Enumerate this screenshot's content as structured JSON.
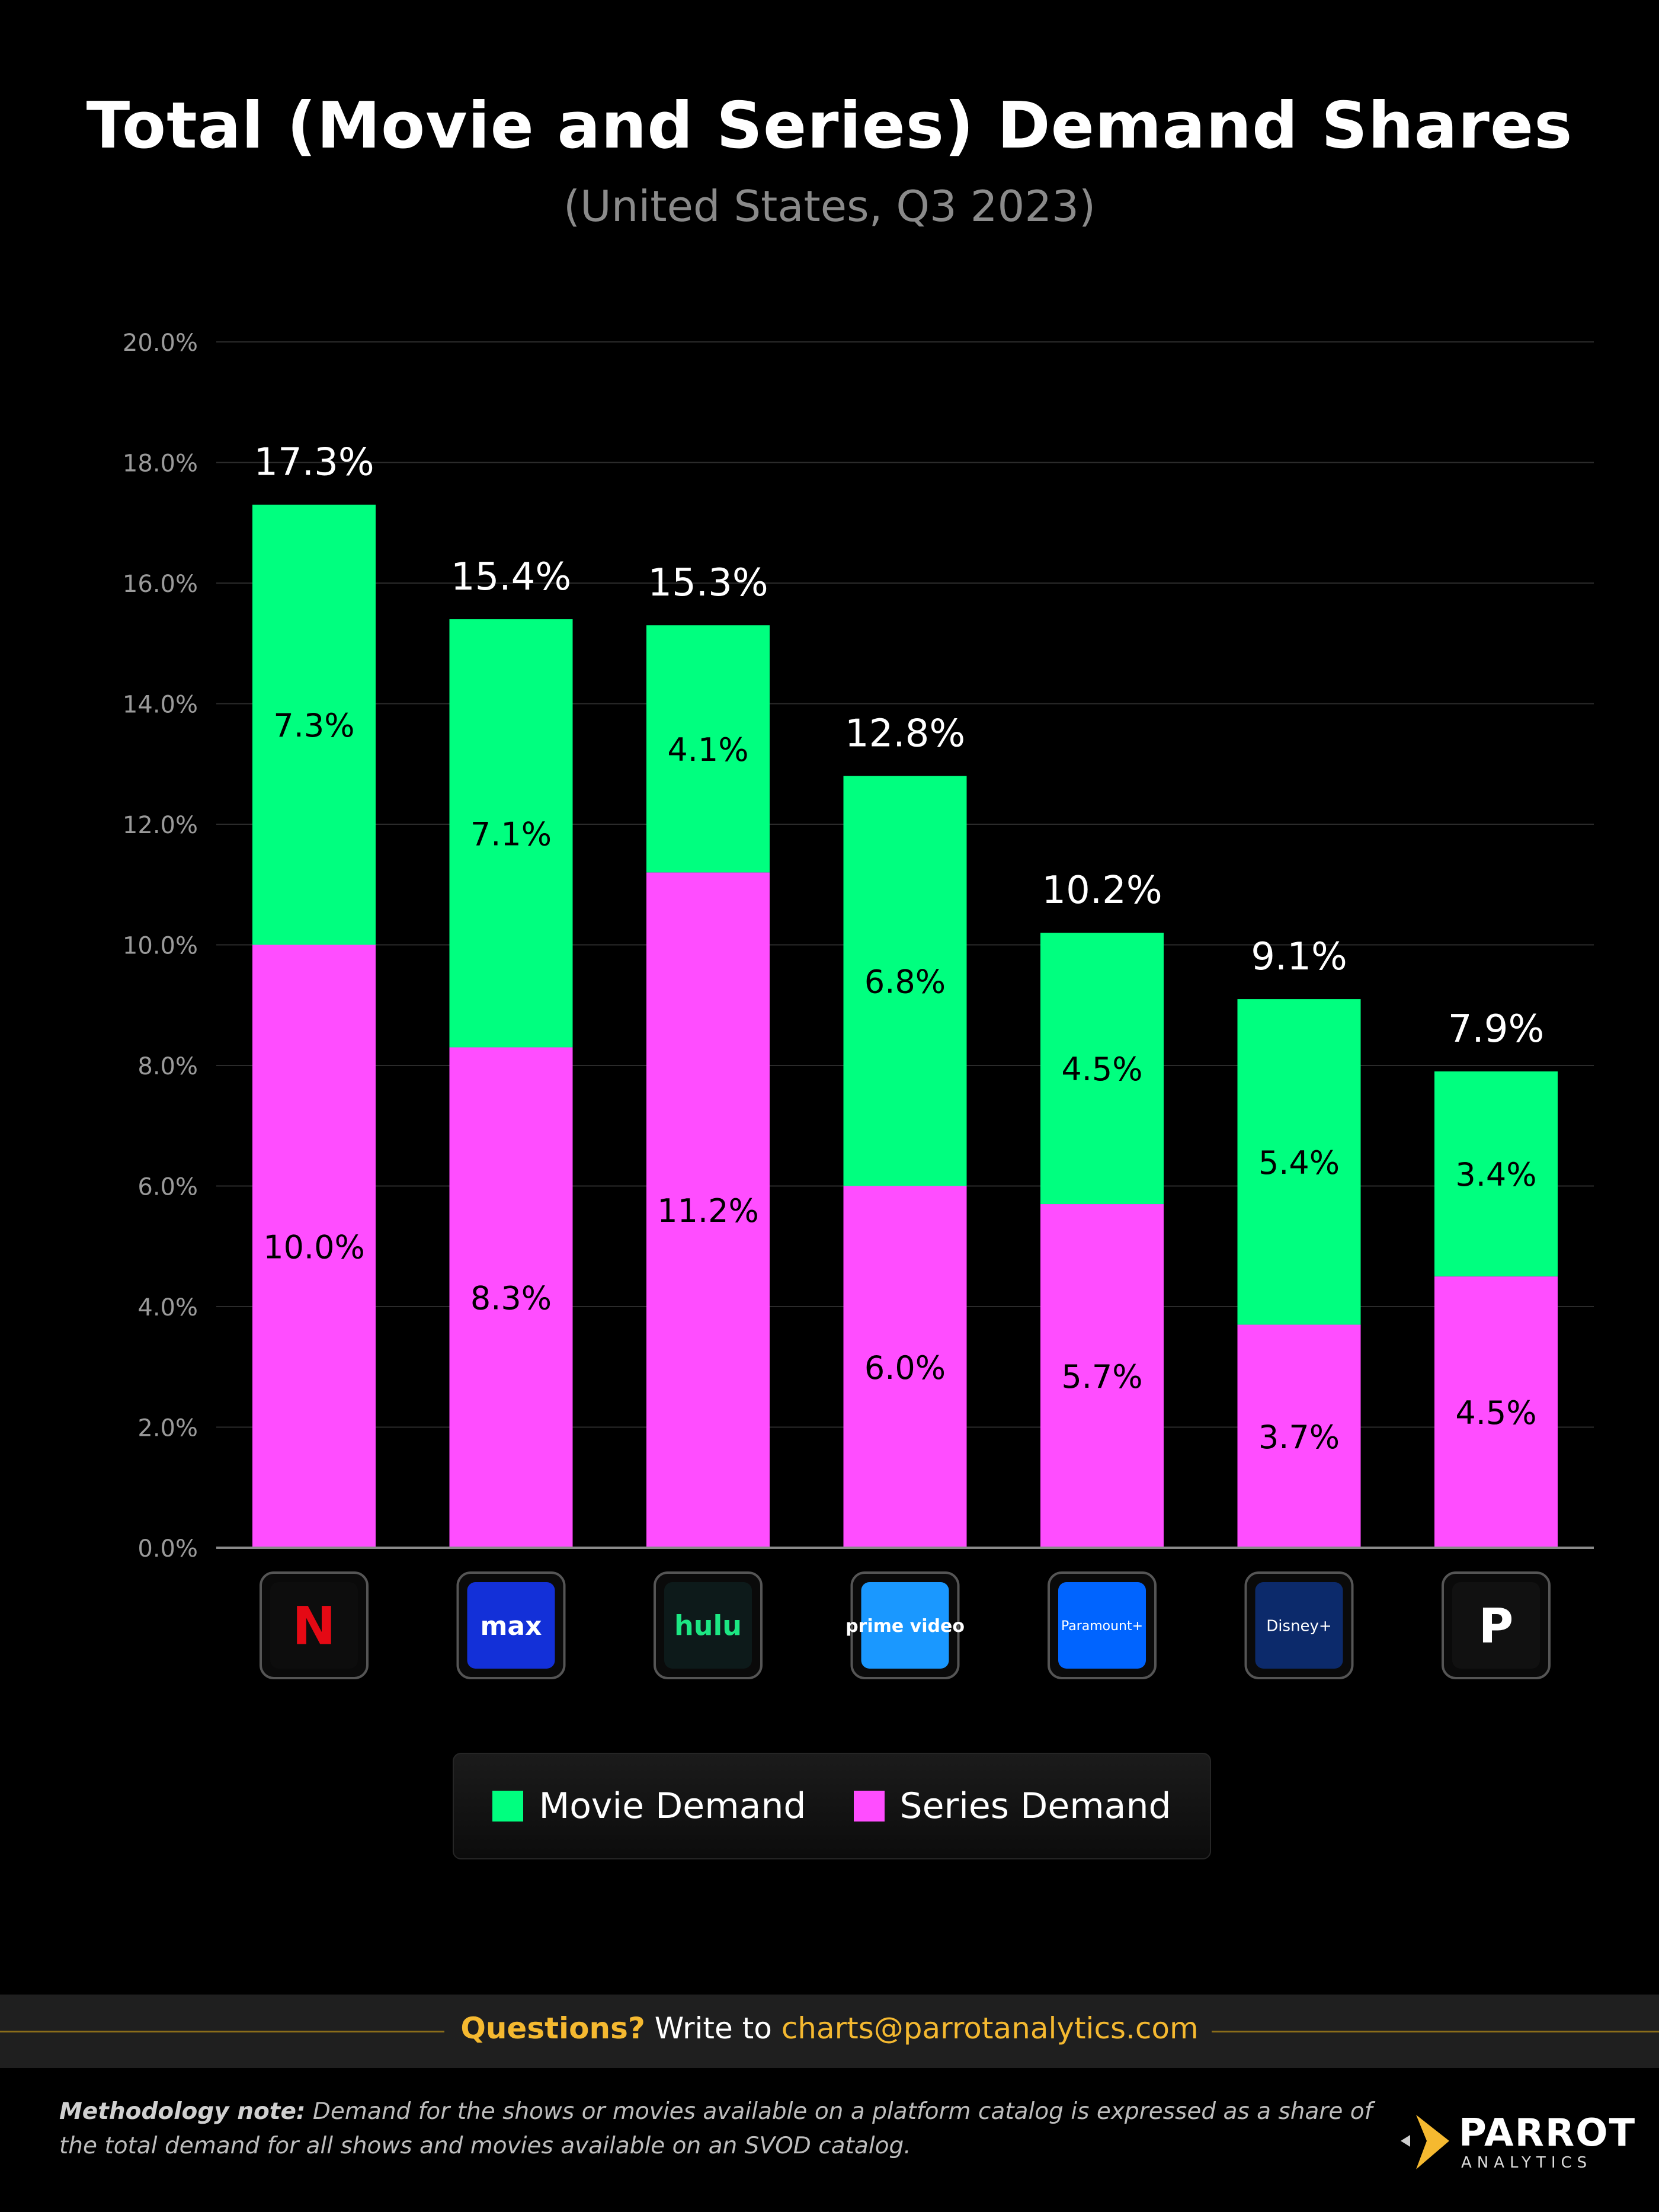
{
  "chart_data": {
    "type": "bar",
    "stacked": true,
    "title": "Total (Movie and Series) Demand Shares",
    "subtitle": "(United States, Q3 2023)",
    "categories": [
      "Netflix",
      "Max",
      "Hulu",
      "Prime Video",
      "Paramount+",
      "Disney+",
      "Peacock"
    ],
    "category_logos": [
      "N",
      "max",
      "hulu",
      "prime video",
      "Paramount+",
      "Disney+",
      "P"
    ],
    "series": [
      {
        "name": "Series Demand",
        "color": "#ff4dff",
        "values": [
          10.0,
          8.3,
          11.2,
          6.0,
          5.7,
          3.7,
          4.5
        ],
        "labels": [
          "10.0%",
          "8.3%",
          "11.2%",
          "6.0%",
          "5.7%",
          "3.7%",
          "4.5%"
        ]
      },
      {
        "name": "Movie Demand",
        "color": "#00ff7f",
        "values": [
          7.3,
          7.1,
          4.1,
          6.8,
          4.5,
          5.4,
          3.4
        ],
        "labels": [
          "7.3%",
          "7.1%",
          "4.1%",
          "6.8%",
          "4.5%",
          "5.4%",
          "3.4%"
        ]
      }
    ],
    "totals": [
      17.3,
      15.4,
      15.3,
      12.8,
      10.2,
      9.1,
      7.9
    ],
    "total_labels": [
      "17.3%",
      "15.4%",
      "15.3%",
      "12.8%",
      "10.2%",
      "9.1%",
      "7.9%"
    ],
    "ylim": [
      0,
      20
    ],
    "yticks": [
      0,
      2,
      4,
      6,
      8,
      10,
      12,
      14,
      16,
      18,
      20
    ],
    "ytick_labels": [
      "0.0%",
      "2.0%",
      "4.0%",
      "6.0%",
      "8.0%",
      "10.0%",
      "12.0%",
      "14.0%",
      "16.0%",
      "18.0%",
      "20.0%"
    ],
    "grid": true,
    "legend": [
      "Movie Demand",
      "Series Demand"
    ],
    "legend_position": "bottom"
  },
  "legend": {
    "movie": "Movie Demand",
    "series": "Series Demand"
  },
  "footer": {
    "questions": "Questions?",
    "write_to": "Write to",
    "email": "charts@parrotanalytics.com"
  },
  "methodology": {
    "label": "Methodology note:",
    "text": "Demand for the shows or movies available on a platform catalog is expressed as a share of the total demand for all shows and movies available on an SVOD catalog."
  },
  "brand": {
    "name": "PARROT",
    "sub": "ANALYTICS"
  },
  "colors": {
    "movie": "#00ff7f",
    "series": "#ff4dff",
    "accent": "#f5b930",
    "background": "#000000"
  }
}
